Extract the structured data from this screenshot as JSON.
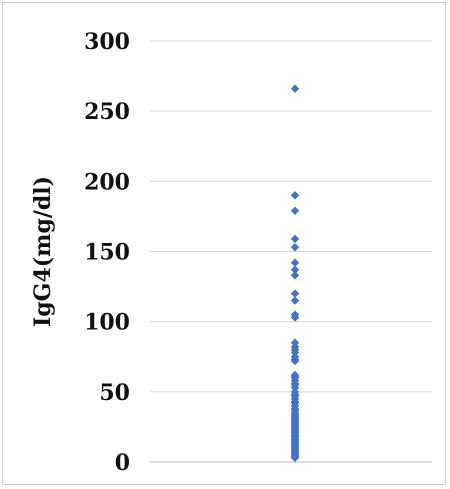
{
  "chart_data": {
    "type": "scatter",
    "ylabel": "IgG4(mg/dl)",
    "xlabel": "",
    "title": "",
    "ylim": [
      0,
      300
    ],
    "yticks": [
      0,
      50,
      100,
      150,
      200,
      250,
      300
    ],
    "ytick_labels": [
      "0",
      "50",
      "100",
      "150",
      "200",
      "250",
      "300"
    ],
    "grid": true,
    "legend": "none",
    "marker": "diamond",
    "color": "#4472c4",
    "x": [
      1,
      1,
      1,
      1,
      1,
      1,
      1,
      1,
      1,
      1,
      1,
      1,
      1,
      1,
      1,
      1,
      1,
      1,
      1,
      1,
      1,
      1,
      1,
      1,
      1,
      1,
      1,
      1,
      1,
      1,
      1,
      1,
      1,
      1,
      1,
      1,
      1,
      1,
      1,
      1,
      1,
      1,
      1,
      1,
      1,
      1,
      1,
      1,
      1,
      1,
      1,
      1,
      1,
      1,
      1,
      1,
      1,
      1,
      1,
      1,
      1,
      1,
      1,
      1,
      1,
      1,
      1,
      1,
      1,
      1,
      1
    ],
    "y": [
      266,
      190,
      179,
      159,
      153,
      142,
      137,
      133,
      120,
      115,
      105,
      103,
      85,
      82,
      80,
      78,
      75,
      73,
      72,
      62,
      61,
      60,
      58,
      56,
      55,
      53,
      50,
      48,
      47,
      45,
      43,
      42,
      40,
      38,
      37,
      35,
      33,
      32,
      30,
      29,
      28,
      27,
      26,
      25,
      24,
      23,
      22,
      21,
      20,
      19,
      18,
      17,
      16,
      15,
      14,
      13,
      12,
      11,
      10,
      9,
      8,
      7,
      6,
      5,
      4,
      3,
      37,
      34,
      31,
      27,
      14
    ]
  }
}
